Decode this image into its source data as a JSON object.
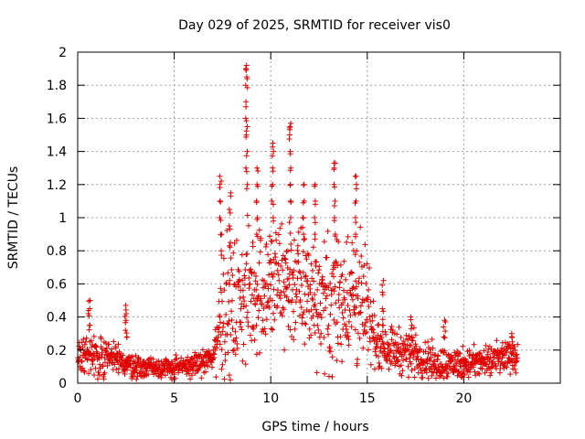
{
  "chart_data": {
    "type": "scatter",
    "title": "Day 029 of 2025, SRMTID for receiver vis0",
    "xlabel": "GPS time / hours",
    "ylabel": "SRMTID / TECUs",
    "xlim": [
      0,
      25
    ],
    "ylim": [
      0,
      2
    ],
    "xticks": [
      0,
      5,
      10,
      15,
      20
    ],
    "yticks": [
      0,
      0.2,
      0.4,
      0.6,
      0.8,
      1,
      1.2,
      1.4,
      1.6,
      1.8,
      2
    ],
    "xtick_labels": [
      "0",
      "5",
      "10",
      "15",
      "20"
    ],
    "ytick_labels": [
      "0",
      "0.2",
      "0.4",
      "0.6",
      "0.8",
      "1",
      "1.2",
      "1.4",
      "1.6",
      "1.8",
      "2"
    ],
    "grid": true,
    "marker": "plus",
    "color": "#e00000",
    "series": [
      {
        "name": "SRMTID",
        "x_range": [
          0,
          22.8
        ],
        "envelope": [
          {
            "x": 0.0,
            "mean": 0.16,
            "spread": 0.08
          },
          {
            "x": 0.5,
            "mean": 0.18,
            "spread": 0.1
          },
          {
            "x": 1.0,
            "mean": 0.17,
            "spread": 0.09
          },
          {
            "x": 2.0,
            "mean": 0.14,
            "spread": 0.08
          },
          {
            "x": 3.0,
            "mean": 0.1,
            "spread": 0.05
          },
          {
            "x": 4.0,
            "mean": 0.1,
            "spread": 0.05
          },
          {
            "x": 5.0,
            "mean": 0.09,
            "spread": 0.05
          },
          {
            "x": 6.0,
            "mean": 0.11,
            "spread": 0.05
          },
          {
            "x": 7.0,
            "mean": 0.15,
            "spread": 0.06
          },
          {
            "x": 7.5,
            "mean": 0.45,
            "spread": 0.3
          },
          {
            "x": 8.0,
            "mean": 0.45,
            "spread": 0.3
          },
          {
            "x": 9.0,
            "mean": 0.55,
            "spread": 0.3
          },
          {
            "x": 10.0,
            "mean": 0.6,
            "spread": 0.3
          },
          {
            "x": 11.0,
            "mean": 0.62,
            "spread": 0.3
          },
          {
            "x": 12.0,
            "mean": 0.55,
            "spread": 0.28
          },
          {
            "x": 13.0,
            "mean": 0.48,
            "spread": 0.28
          },
          {
            "x": 14.0,
            "mean": 0.55,
            "spread": 0.3
          },
          {
            "x": 14.8,
            "mean": 0.45,
            "spread": 0.3
          },
          {
            "x": 15.5,
            "mean": 0.25,
            "spread": 0.1
          },
          {
            "x": 16.5,
            "mean": 0.2,
            "spread": 0.1
          },
          {
            "x": 17.5,
            "mean": 0.18,
            "spread": 0.1
          },
          {
            "x": 18.5,
            "mean": 0.12,
            "spread": 0.08
          },
          {
            "x": 20.0,
            "mean": 0.12,
            "spread": 0.07
          },
          {
            "x": 21.5,
            "mean": 0.13,
            "spread": 0.07
          },
          {
            "x": 22.8,
            "mean": 0.18,
            "spread": 0.08
          }
        ],
        "bursts": [
          {
            "x": 0.6,
            "y": [
              0.35,
              0.42,
              0.45,
              0.5
            ]
          },
          {
            "x": 2.5,
            "y": [
              0.28,
              0.32,
              0.38,
              0.42,
              0.47
            ]
          },
          {
            "x": 7.4,
            "y": [
              0.8,
              0.9,
              1.0,
              1.1,
              1.2,
              1.25
            ]
          },
          {
            "x": 7.9,
            "y": [
              0.85,
              0.95,
              1.05,
              1.15
            ]
          },
          {
            "x": 8.75,
            "y": [
              1.2,
              1.3,
              1.4,
              1.5,
              1.55,
              1.6,
              1.7,
              1.8,
              1.85,
              1.9,
              1.92
            ]
          },
          {
            "x": 9.3,
            "y": [
              0.9,
              1.0,
              1.1,
              1.2,
              1.3
            ]
          },
          {
            "x": 10.1,
            "y": [
              1.0,
              1.1,
              1.2,
              1.3,
              1.4,
              1.45
            ]
          },
          {
            "x": 11.0,
            "y": [
              1.0,
              1.1,
              1.2,
              1.3,
              1.4,
              1.5,
              1.55,
              1.57
            ]
          },
          {
            "x": 11.7,
            "y": [
              0.9,
              1.0,
              1.1,
              1.2
            ]
          },
          {
            "x": 12.3,
            "y": [
              0.9,
              1.0,
              1.1,
              1.2
            ]
          },
          {
            "x": 13.3,
            "y": [
              0.9,
              1.0,
              1.1,
              1.2,
              1.3,
              1.33
            ]
          },
          {
            "x": 14.4,
            "y": [
              0.8,
              0.9,
              1.0,
              1.1,
              1.2,
              1.25
            ]
          },
          {
            "x": 15.8,
            "y": [
              0.35,
              0.45,
              0.55,
              0.62
            ]
          },
          {
            "x": 17.3,
            "y": [
              0.28,
              0.35,
              0.4
            ]
          },
          {
            "x": 19.0,
            "y": [
              0.28,
              0.34,
              0.38
            ]
          },
          {
            "x": 22.5,
            "y": [
              0.25,
              0.3
            ]
          }
        ]
      }
    ]
  }
}
